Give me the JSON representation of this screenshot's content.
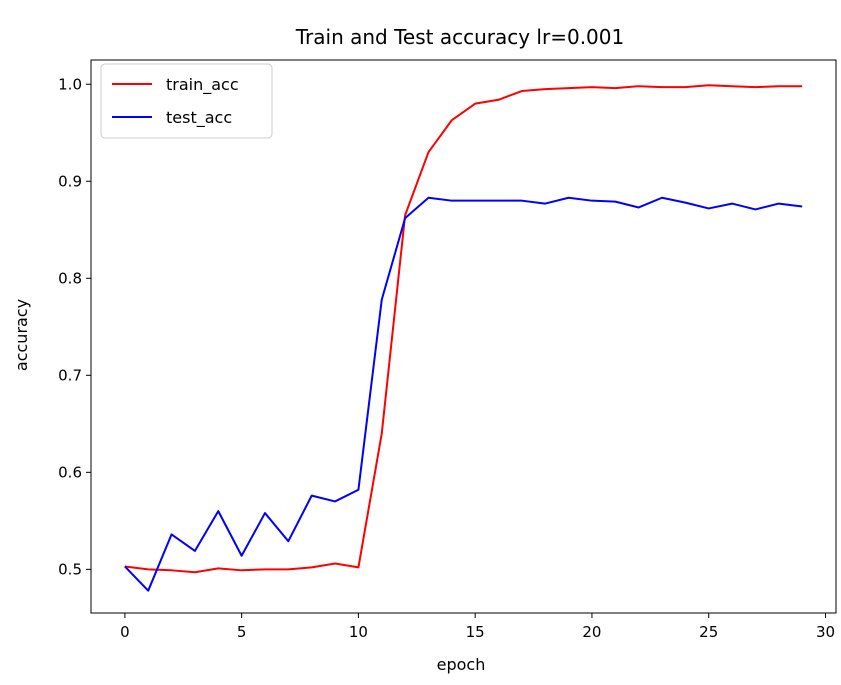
{
  "chart_data": {
    "type": "line",
    "title": "Train and Test accuracy  lr=0.001",
    "xlabel": "epoch",
    "ylabel": "accuracy",
    "xlim": [
      -1.45,
      30.45
    ],
    "ylim": [
      0.455,
      1.025
    ],
    "xticks": [
      0,
      5,
      10,
      15,
      20,
      25,
      30
    ],
    "yticks": [
      0.5,
      0.6,
      0.7,
      0.8,
      0.9,
      1.0
    ],
    "xtick_labels": [
      "0",
      "5",
      "10",
      "15",
      "20",
      "25",
      "30"
    ],
    "ytick_labels": [
      "0.5",
      "0.6",
      "0.7",
      "0.8",
      "0.9",
      "1.0"
    ],
    "grid": false,
    "legend_position": "top-left",
    "x": [
      0,
      1,
      2,
      3,
      4,
      5,
      6,
      7,
      8,
      9,
      10,
      11,
      12,
      13,
      14,
      15,
      16,
      17,
      18,
      19,
      20,
      21,
      22,
      23,
      24,
      25,
      26,
      27,
      28,
      29
    ],
    "series": [
      {
        "name": "train_acc",
        "color": "#ff0000",
        "values": [
          0.503,
          0.5,
          0.499,
          0.497,
          0.501,
          0.499,
          0.5,
          0.5,
          0.502,
          0.506,
          0.502,
          0.64,
          0.865,
          0.93,
          0.963,
          0.98,
          0.984,
          0.993,
          0.995,
          0.996,
          0.997,
          0.996,
          0.998,
          0.997,
          0.997,
          0.999,
          0.998,
          0.997,
          0.998,
          0.998
        ]
      },
      {
        "name": "test_acc",
        "color": "#0000ff",
        "values": [
          0.503,
          0.478,
          0.536,
          0.519,
          0.56,
          0.514,
          0.558,
          0.529,
          0.576,
          0.57,
          0.582,
          0.778,
          0.862,
          0.883,
          0.88,
          0.88,
          0.88,
          0.88,
          0.877,
          0.883,
          0.88,
          0.879,
          0.873,
          0.883,
          0.878,
          0.872,
          0.877,
          0.871,
          0.877,
          0.874
        ]
      }
    ]
  }
}
